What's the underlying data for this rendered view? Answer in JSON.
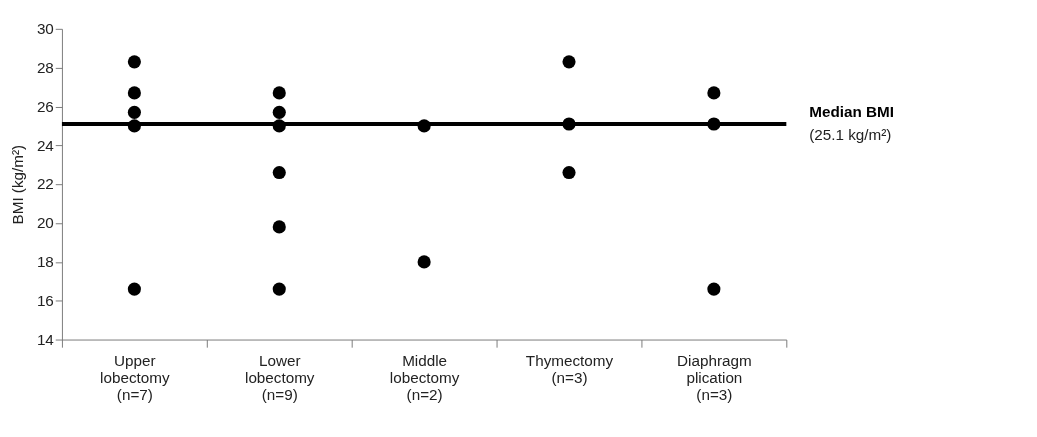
{
  "chart_data": {
    "type": "scatter",
    "categories": [
      "Upper lobectomy (n=7)",
      "Lower lobectomy (n=9)",
      "Middle lobectomy (n=2)",
      "Thymectomy (n=3)",
      "Diaphragm plication (n=3)"
    ],
    "ylabel": "BMI (kg/m²)",
    "ylim": [
      14,
      30
    ],
    "yticks": [
      14,
      16,
      18,
      20,
      22,
      24,
      26,
      28,
      30
    ],
    "grid": false,
    "marker": "circle",
    "series": [
      {
        "color": "#000000",
        "x": [
          "Upper lobectomy (n=7)",
          "Upper lobectomy (n=7)",
          "Upper lobectomy (n=7)",
          "Upper lobectomy (n=7)",
          "Upper lobectomy (n=7)",
          "Upper lobectomy (n=7)",
          "Lower lobectomy (n=9)",
          "Lower lobectomy (n=9)",
          "Lower lobectomy (n=9)",
          "Lower lobectomy (n=9)",
          "Lower lobectomy (n=9)",
          "Lower lobectomy (n=9)",
          "Lower lobectomy (n=9)",
          "Middle lobectomy (n=2)",
          "Middle lobectomy (n=2)",
          "Thymectomy (n=3)",
          "Thymectomy (n=3)",
          "Thymectomy (n=3)",
          "Diaphragm plication (n=3)",
          "Diaphragm plication (n=3)",
          "Diaphragm plication (n=3)"
        ],
        "values": [
          28.3,
          26.7,
          25.7,
          null,
          25.0,
          16.6,
          26.7,
          25.7,
          null,
          25.0,
          22.6,
          19.8,
          16.6,
          25.0,
          18.0,
          28.3,
          25.1,
          22.6,
          26.7,
          25.1,
          16.6
        ]
      }
    ],
    "ref_lines": [
      {
        "axis": "y",
        "value": 25.1,
        "label": "Median BMI\n(25.1 kg/m²)",
        "color": "#000000",
        "line_style": "solid"
      }
    ]
  }
}
